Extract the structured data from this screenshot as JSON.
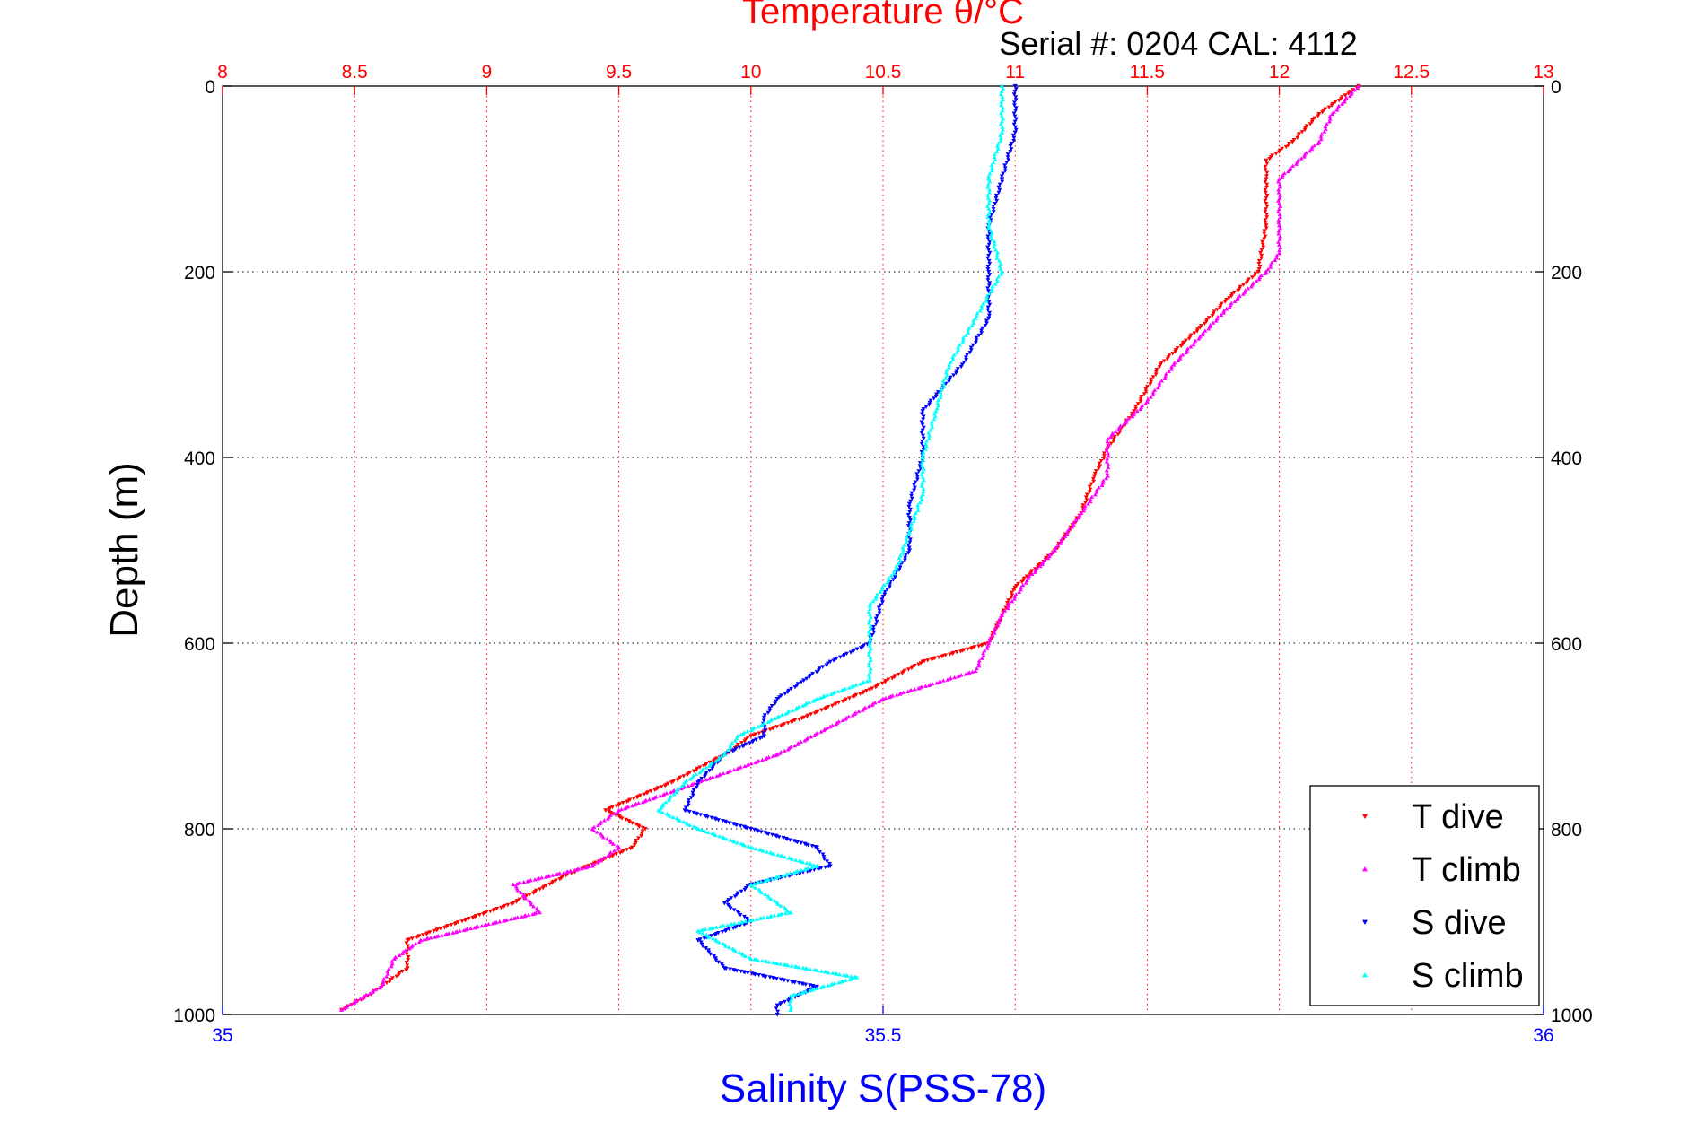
{
  "chart_data": {
    "type": "scatter",
    "title": "Temperature θ/°C",
    "subtitle": "Serial #: 0204  CAL: 4112",
    "ylabel": "Depth (m)",
    "xlabel_bottom": "Salinity S(PSS-78)",
    "ylim": [
      0,
      1000
    ],
    "y_reversed": true,
    "top_axis": {
      "label": "Temperature θ/°C",
      "range": [
        8,
        13
      ],
      "ticks": [
        8,
        8.5,
        9,
        9.5,
        10,
        10.5,
        11,
        11.5,
        12,
        12.5,
        13
      ],
      "tick_labels": [
        "8",
        "8.5",
        "9",
        "9.5",
        "10",
        "10.5",
        "11",
        "11.5",
        "12",
        "12.5",
        "13"
      ],
      "color": "#ff0000"
    },
    "bottom_axis": {
      "label": "Salinity S(PSS-78)",
      "range": [
        35,
        36
      ],
      "ticks": [
        35,
        35.5,
        36
      ],
      "tick_labels": [
        "35",
        "35.5",
        "36"
      ],
      "color": "#0000ff"
    },
    "left_axis": {
      "ticks": [
        0,
        200,
        400,
        600,
        800,
        1000
      ],
      "tick_labels": [
        "0",
        "200",
        "400",
        "600",
        "800",
        "1000"
      ]
    },
    "right_axis": {
      "ticks": [
        0,
        200,
        400,
        600,
        800,
        1000
      ],
      "tick_labels": [
        "0",
        "200",
        "400",
        "600",
        "800",
        "1000"
      ]
    },
    "grid": true,
    "legend": {
      "position": "bottom-right"
    },
    "series": [
      {
        "name": "T dive",
        "axis": "top",
        "marker": "triangle-down",
        "color": "#ff0000",
        "points": [
          [
            0,
            12.3
          ],
          [
            10,
            12.25
          ],
          [
            30,
            12.15
          ],
          [
            60,
            12.05
          ],
          [
            80,
            11.95
          ],
          [
            100,
            11.95
          ],
          [
            150,
            11.95
          ],
          [
            200,
            11.92
          ],
          [
            230,
            11.8
          ],
          [
            260,
            11.7
          ],
          [
            300,
            11.55
          ],
          [
            350,
            11.45
          ],
          [
            390,
            11.35
          ],
          [
            420,
            11.3
          ],
          [
            460,
            11.25
          ],
          [
            500,
            11.15
          ],
          [
            540,
            11.0
          ],
          [
            570,
            10.95
          ],
          [
            600,
            10.9
          ],
          [
            620,
            10.65
          ],
          [
            650,
            10.45
          ],
          [
            680,
            10.2
          ],
          [
            700,
            10.0
          ],
          [
            720,
            9.9
          ],
          [
            750,
            9.7
          ],
          [
            780,
            9.45
          ],
          [
            800,
            9.6
          ],
          [
            820,
            9.55
          ],
          [
            850,
            9.3
          ],
          [
            880,
            9.1
          ],
          [
            920,
            8.7
          ],
          [
            950,
            8.7
          ],
          [
            980,
            8.55
          ],
          [
            995,
            8.45
          ]
        ]
      },
      {
        "name": "T climb",
        "axis": "top",
        "marker": "triangle-up",
        "color": "#ff00ff",
        "points": [
          [
            0,
            12.3
          ],
          [
            30,
            12.2
          ],
          [
            60,
            12.15
          ],
          [
            100,
            12.0
          ],
          [
            150,
            12.0
          ],
          [
            180,
            12.0
          ],
          [
            200,
            11.95
          ],
          [
            240,
            11.8
          ],
          [
            270,
            11.7
          ],
          [
            300,
            11.6
          ],
          [
            340,
            11.5
          ],
          [
            380,
            11.35
          ],
          [
            420,
            11.35
          ],
          [
            460,
            11.25
          ],
          [
            500,
            11.15
          ],
          [
            530,
            11.05
          ],
          [
            570,
            10.95
          ],
          [
            600,
            10.9
          ],
          [
            630,
            10.85
          ],
          [
            660,
            10.5
          ],
          [
            690,
            10.3
          ],
          [
            720,
            10.1
          ],
          [
            750,
            9.8
          ],
          [
            780,
            9.5
          ],
          [
            800,
            9.4
          ],
          [
            820,
            9.5
          ],
          [
            840,
            9.4
          ],
          [
            860,
            9.1
          ],
          [
            890,
            9.2
          ],
          [
            920,
            8.75
          ],
          [
            940,
            8.65
          ],
          [
            970,
            8.6
          ],
          [
            995,
            8.45
          ]
        ]
      },
      {
        "name": "S dive",
        "axis": "bottom",
        "marker": "triangle-down",
        "color": "#0000ff",
        "points": [
          [
            0,
            35.6
          ],
          [
            50,
            35.6
          ],
          [
            100,
            35.59
          ],
          [
            150,
            35.58
          ],
          [
            200,
            35.58
          ],
          [
            250,
            35.58
          ],
          [
            300,
            35.56
          ],
          [
            350,
            35.53
          ],
          [
            400,
            35.53
          ],
          [
            450,
            35.52
          ],
          [
            500,
            35.52
          ],
          [
            550,
            35.5
          ],
          [
            600,
            35.49
          ],
          [
            620,
            35.46
          ],
          [
            640,
            35.44
          ],
          [
            660,
            35.42
          ],
          [
            680,
            35.41
          ],
          [
            700,
            35.41
          ],
          [
            720,
            35.38
          ],
          [
            750,
            35.36
          ],
          [
            780,
            35.35
          ],
          [
            800,
            35.4
          ],
          [
            820,
            35.45
          ],
          [
            840,
            35.46
          ],
          [
            860,
            35.4
          ],
          [
            880,
            35.38
          ],
          [
            900,
            35.4
          ],
          [
            920,
            35.36
          ],
          [
            950,
            35.38
          ],
          [
            970,
            35.45
          ],
          [
            990,
            35.42
          ],
          [
            1000,
            35.42
          ]
        ]
      },
      {
        "name": "S climb",
        "axis": "bottom",
        "marker": "triangle-up",
        "color": "#00ffff",
        "points": [
          [
            0,
            35.59
          ],
          [
            50,
            35.59
          ],
          [
            100,
            35.58
          ],
          [
            150,
            35.58
          ],
          [
            200,
            35.59
          ],
          [
            250,
            35.57
          ],
          [
            300,
            35.55
          ],
          [
            350,
            35.54
          ],
          [
            400,
            35.53
          ],
          [
            440,
            35.53
          ],
          [
            480,
            35.52
          ],
          [
            520,
            35.51
          ],
          [
            560,
            35.49
          ],
          [
            600,
            35.49
          ],
          [
            640,
            35.49
          ],
          [
            660,
            35.45
          ],
          [
            680,
            35.42
          ],
          [
            700,
            35.39
          ],
          [
            720,
            35.38
          ],
          [
            750,
            35.35
          ],
          [
            780,
            35.33
          ],
          [
            800,
            35.36
          ],
          [
            820,
            35.4
          ],
          [
            840,
            35.45
          ],
          [
            860,
            35.4
          ],
          [
            890,
            35.43
          ],
          [
            910,
            35.36
          ],
          [
            940,
            35.4
          ],
          [
            960,
            35.48
          ],
          [
            980,
            35.43
          ],
          [
            995,
            35.43
          ]
        ]
      }
    ]
  }
}
